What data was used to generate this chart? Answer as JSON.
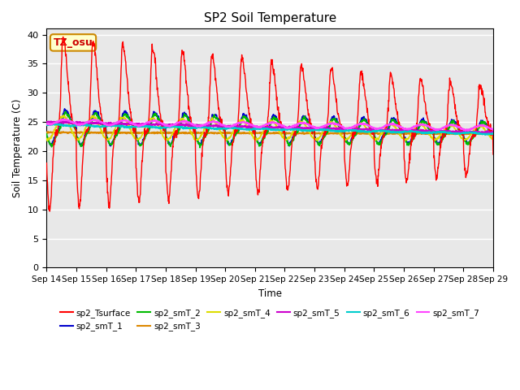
{
  "title": "SP2 Soil Temperature",
  "ylabel": "Soil Temperature (C)",
  "xlabel": "Time",
  "ylim": [
    0,
    41
  ],
  "tz_label": "TZ_osu",
  "background_color": "#e8e8e8",
  "grid_color": "white",
  "series_colors": {
    "sp2_Tsurface": "#ff0000",
    "sp2_smT_1": "#0000cc",
    "sp2_smT_2": "#00bb00",
    "sp2_smT_3": "#dd8800",
    "sp2_smT_4": "#dddd00",
    "sp2_smT_5": "#cc00cc",
    "sp2_smT_6": "#00cccc",
    "sp2_smT_7": "#ff44ff"
  },
  "xtick_labels": [
    "Sep 14",
    "Sep 15",
    "Sep 16",
    "Sep 17",
    "Sep 18",
    "Sep 19",
    "Sep 20",
    "Sep 21",
    "Sep 22",
    "Sep 23",
    "Sep 24",
    "Sep 25",
    "Sep 26",
    "Sep 27",
    "Sep 28",
    "Sep 29"
  ],
  "ytick_values": [
    0,
    5,
    10,
    15,
    20,
    25,
    30,
    35,
    40
  ],
  "n_points": 1440,
  "days": 15
}
